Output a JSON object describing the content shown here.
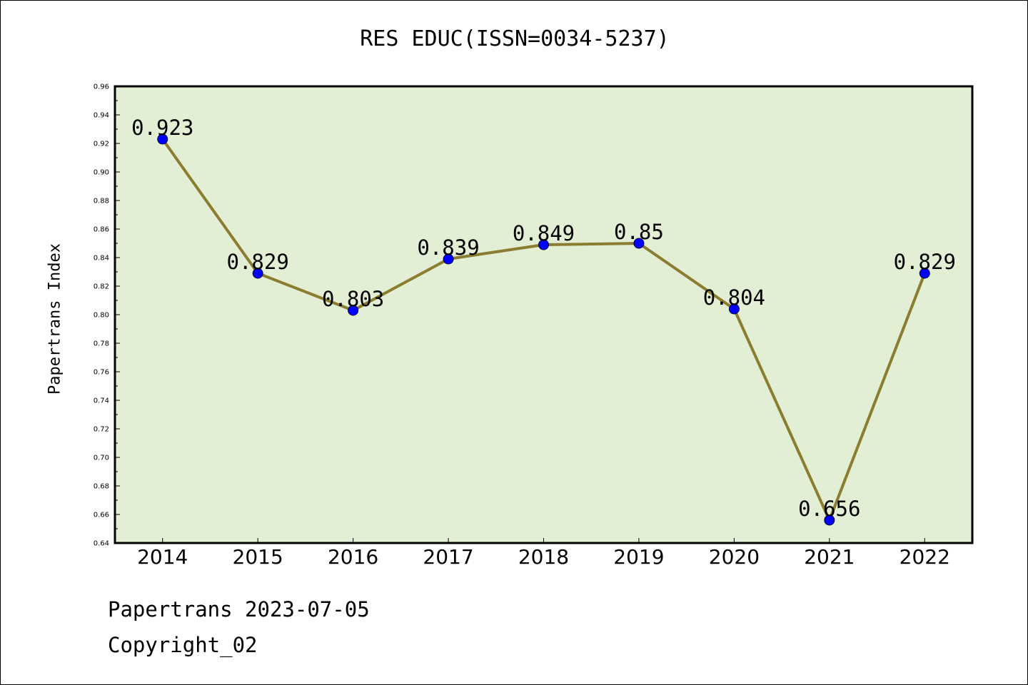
{
  "chart_data": {
    "type": "line",
    "title": "RES EDUC(ISSN=0034-5237)",
    "xlabel": "",
    "ylabel": "Papertrans Index",
    "categories": [
      "2014",
      "2015",
      "2016",
      "2017",
      "2018",
      "2019",
      "2020",
      "2021",
      "2022"
    ],
    "values": [
      0.923,
      0.829,
      0.803,
      0.839,
      0.849,
      0.85,
      0.804,
      0.656,
      0.829
    ],
    "data_labels": [
      "0.923",
      "0.829",
      "0.803",
      "0.839",
      "0.849",
      "0.85",
      "0.804",
      "0.656",
      "0.829"
    ],
    "ylim": [
      0.64,
      0.96
    ],
    "yticks": [
      "0.64",
      "0.66",
      "0.68",
      "0.70",
      "0.72",
      "0.74",
      "0.76",
      "0.78",
      "0.80",
      "0.82",
      "0.84",
      "0.86",
      "0.88",
      "0.90",
      "0.92",
      "0.94",
      "0.96"
    ],
    "grid": false,
    "colors": {
      "plot_background": "#e2efd5",
      "line": "#8b7d2f",
      "marker": "#0000ff"
    }
  },
  "footer": {
    "date_line": "Papertrans 2023-07-05",
    "copyright": "Copyright_02"
  }
}
